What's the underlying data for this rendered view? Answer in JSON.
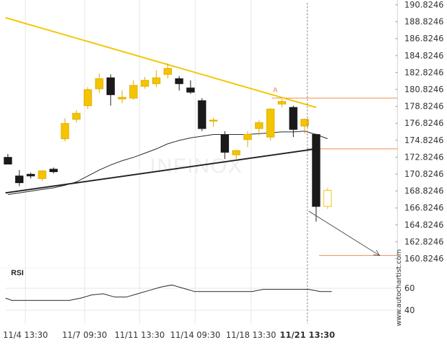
{
  "chart_data": [
    {
      "type": "candlestick",
      "title": "",
      "y_ticks": [
        "190.8246",
        "188.8246",
        "186.8246",
        "184.8246",
        "182.8246",
        "180.8246",
        "178.8246",
        "176.8246",
        "174.8246",
        "172.8246",
        "170.8246",
        "168.8246",
        "166.8246",
        "164.8246",
        "162.8246",
        "160.8246"
      ],
      "ylim": [
        159.8,
        191.3
      ],
      "x_ticks": [
        "11/4 13:30",
        "11/7 09:30",
        "11/11 13:30",
        "11/14 09:30",
        "11/18 13:30",
        "11/21 13:30"
      ],
      "highlight_x_tick": "11/21 13:30",
      "candles": [
        {
          "o": 172.8,
          "h": 173.2,
          "l": 172.0,
          "c": 172.0,
          "color": "black"
        },
        {
          "o": 170.6,
          "h": 171.3,
          "l": 169.4,
          "c": 169.8,
          "color": "black"
        },
        {
          "o": 170.6,
          "h": 171.0,
          "l": 170.3,
          "c": 170.8,
          "color": "black"
        },
        {
          "o": 170.3,
          "h": 171.3,
          "l": 170.0,
          "c": 171.2,
          "color": "gold"
        },
        {
          "o": 171.4,
          "h": 171.6,
          "l": 170.9,
          "c": 171.1,
          "color": "black"
        },
        {
          "o": 175.0,
          "h": 177.4,
          "l": 174.7,
          "c": 176.8,
          "color": "gold"
        },
        {
          "o": 177.3,
          "h": 178.4,
          "l": 176.9,
          "c": 178.0,
          "color": "gold"
        },
        {
          "o": 178.9,
          "h": 181.1,
          "l": 178.5,
          "c": 180.8,
          "color": "gold"
        },
        {
          "o": 180.9,
          "h": 182.7,
          "l": 180.4,
          "c": 182.1,
          "color": "gold"
        },
        {
          "o": 182.2,
          "h": 182.6,
          "l": 178.9,
          "c": 180.2,
          "color": "black"
        },
        {
          "o": 179.7,
          "h": 180.7,
          "l": 179.2,
          "c": 179.9,
          "color": "gold"
        },
        {
          "o": 179.8,
          "h": 181.9,
          "l": 179.6,
          "c": 181.3,
          "color": "gold"
        },
        {
          "o": 181.2,
          "h": 182.3,
          "l": 180.9,
          "c": 181.9,
          "color": "gold"
        },
        {
          "o": 181.5,
          "h": 183.1,
          "l": 181.1,
          "c": 182.2,
          "color": "gold"
        },
        {
          "o": 182.6,
          "h": 183.9,
          "l": 182.1,
          "c": 183.3,
          "color": "gold"
        },
        {
          "o": 182.1,
          "h": 182.4,
          "l": 180.7,
          "c": 181.5,
          "color": "black"
        },
        {
          "o": 181.0,
          "h": 181.9,
          "l": 180.3,
          "c": 180.5,
          "color": "black"
        },
        {
          "o": 179.5,
          "h": 179.8,
          "l": 175.9,
          "c": 176.2,
          "color": "black"
        },
        {
          "o": 177.1,
          "h": 177.5,
          "l": 176.4,
          "c": 177.2,
          "color": "gold"
        },
        {
          "o": 175.5,
          "h": 175.9,
          "l": 172.6,
          "c": 173.4,
          "color": "black"
        },
        {
          "o": 173.1,
          "h": 173.7,
          "l": 172.5,
          "c": 173.6,
          "color": "gold"
        },
        {
          "o": 174.9,
          "h": 175.9,
          "l": 174.0,
          "c": 175.5,
          "color": "gold"
        },
        {
          "o": 176.2,
          "h": 177.2,
          "l": 175.4,
          "c": 176.9,
          "color": "gold"
        },
        {
          "o": 175.2,
          "h": 178.6,
          "l": 174.8,
          "c": 178.5,
          "color": "gold"
        },
        {
          "o": 179.1,
          "h": 179.7,
          "l": 178.7,
          "c": 179.4,
          "color": "gold"
        },
        {
          "o": 178.7,
          "h": 178.9,
          "l": 175.2,
          "c": 176.1,
          "color": "black"
        },
        {
          "o": 176.5,
          "h": 177.4,
          "l": 175.6,
          "c": 177.3,
          "color": "gold"
        },
        {
          "o": 175.5,
          "h": 175.6,
          "l": 165.2,
          "c": 167.0,
          "color": "black"
        },
        {
          "o": 167.0,
          "h": 169.2,
          "l": 166.7,
          "c": 168.9,
          "color": "hollow"
        }
      ],
      "moving_average": [
        168.4,
        168.6,
        168.8,
        169.0,
        169.2,
        169.5,
        169.9,
        170.6,
        171.3,
        171.9,
        172.4,
        172.8,
        173.3,
        173.8,
        174.4,
        174.8,
        175.1,
        175.3,
        175.5,
        175.5,
        175.5,
        175.5,
        175.6,
        175.7,
        175.8,
        175.8,
        175.9,
        175.5,
        175.0
      ],
      "resistance_line": {
        "from": [
          0,
          189.3
        ],
        "to": [
          27,
          178.7
        ],
        "color": "#f5c400"
      },
      "support_line": {
        "from": [
          0,
          168.6
        ],
        "to": [
          27,
          173.8
        ],
        "color": "#222222"
      },
      "levels": [
        {
          "value": 179.8,
          "color": "#f08a4b"
        },
        {
          "value": 173.8,
          "color": "#f08a4b"
        },
        {
          "value": 161.2,
          "color": "#f08a4b"
        }
      ],
      "marker_label": "A",
      "projection": {
        "from_value": 166.6,
        "to_value": 161.2,
        "color": "#555555"
      },
      "watermark": "INFINOX",
      "colors": {
        "up": "#f5c400",
        "down": "#1a1a1a",
        "grid": "#e6e6e6"
      }
    },
    {
      "type": "line",
      "title": "RSI",
      "y_ticks": [
        "60",
        "40"
      ],
      "ylim": [
        35,
        67
      ],
      "values": [
        51,
        49,
        49,
        49,
        49,
        49,
        49,
        51,
        54,
        55,
        52,
        52,
        55,
        58,
        61,
        63,
        60,
        57,
        57,
        57,
        57,
        57,
        57,
        59,
        59,
        59,
        59,
        59,
        57,
        57
      ]
    }
  ],
  "vendor_label": "www.autochartist.com"
}
